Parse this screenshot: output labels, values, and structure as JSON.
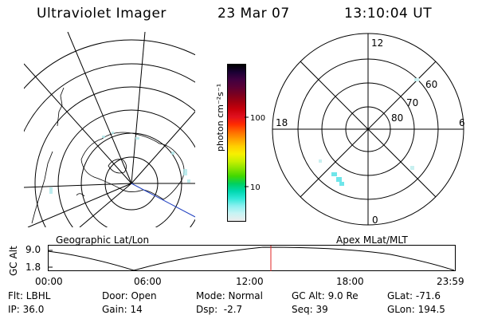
{
  "header": {
    "instrument": "Ultraviolet Imager",
    "date": "23 Mar 07",
    "time": "13:10:04 UT"
  },
  "colorbar": {
    "label": "photon cm⁻²s⁻¹",
    "ticks": [
      "100",
      "10"
    ],
    "colors": [
      "#000000",
      "#1a0033",
      "#400040",
      "#5a0035",
      "#7a0020",
      "#a00010",
      "#c8000a",
      "#e0101e",
      "#ff2a00",
      "#ff6a00",
      "#ff9e00",
      "#ffd000",
      "#f8f000",
      "#c8f000",
      "#86e400",
      "#40d800",
      "#00d060",
      "#00d8b0",
      "#30e8d8",
      "#8cf0f0",
      "#c8f4f4",
      "#ececec"
    ]
  },
  "geo_panel": {
    "caption": "Geographic Lat/Lon"
  },
  "polar_panel": {
    "caption": "Apex MLat/MLT",
    "mlt_labels": {
      "top": "12",
      "left": "18",
      "right": "6",
      "bottom": "0"
    },
    "lat_labels": [
      "60",
      "70",
      "80"
    ]
  },
  "altitude_strip": {
    "axis_label": "GC Alt",
    "ticks": [
      "9.0",
      "1.8"
    ],
    "time_ticks": [
      "00:00",
      "06:00",
      "12:00",
      "18:00",
      "23:59"
    ],
    "marker_time": "13:10",
    "marker_color": "#e02020"
  },
  "footer": {
    "filter": "Flt: LBHL",
    "ip": "IP: 36.0",
    "door": "Door: Open",
    "gain": "Gain: 14",
    "mode": "Mode: Normal",
    "dsp": "Dsp:  -2.7",
    "gc_alt": "GC Alt: 9.0 Re",
    "seq": "Seq: 39",
    "glat": "GLat: -71.6",
    "glon": "GLon: 194.5"
  }
}
